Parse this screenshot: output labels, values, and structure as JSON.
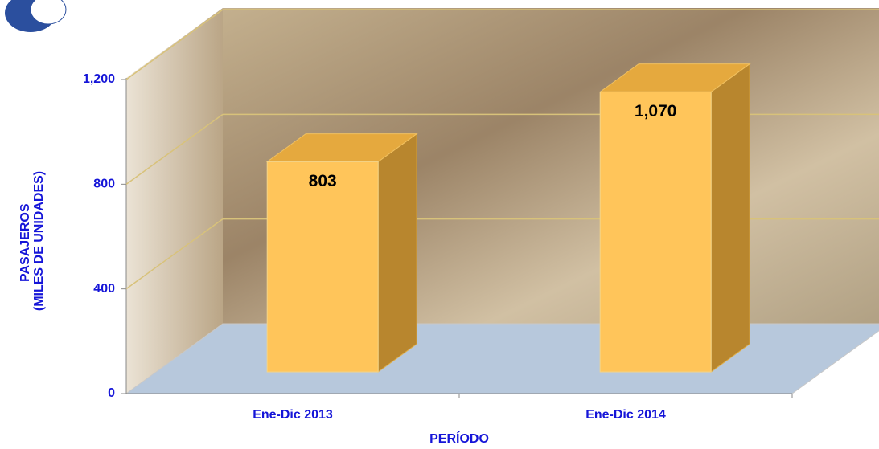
{
  "chart_data": {
    "type": "bar",
    "categories": [
      "Ene-Dic 2013",
      "Ene-Dic 2014"
    ],
    "values": [
      803,
      1070
    ],
    "value_labels": [
      "803",
      "1,070"
    ],
    "color": "#ffc55a",
    "ylabel": [
      "PASAJEROS",
      "(MILES DE UNIDADES)"
    ],
    "xlabel": "PERÍODO",
    "ylim": [
      0,
      1200
    ],
    "yticks": [
      0,
      400,
      800,
      {
        "value": 1200,
        "label": "1,200"
      }
    ],
    "grid": true
  }
}
